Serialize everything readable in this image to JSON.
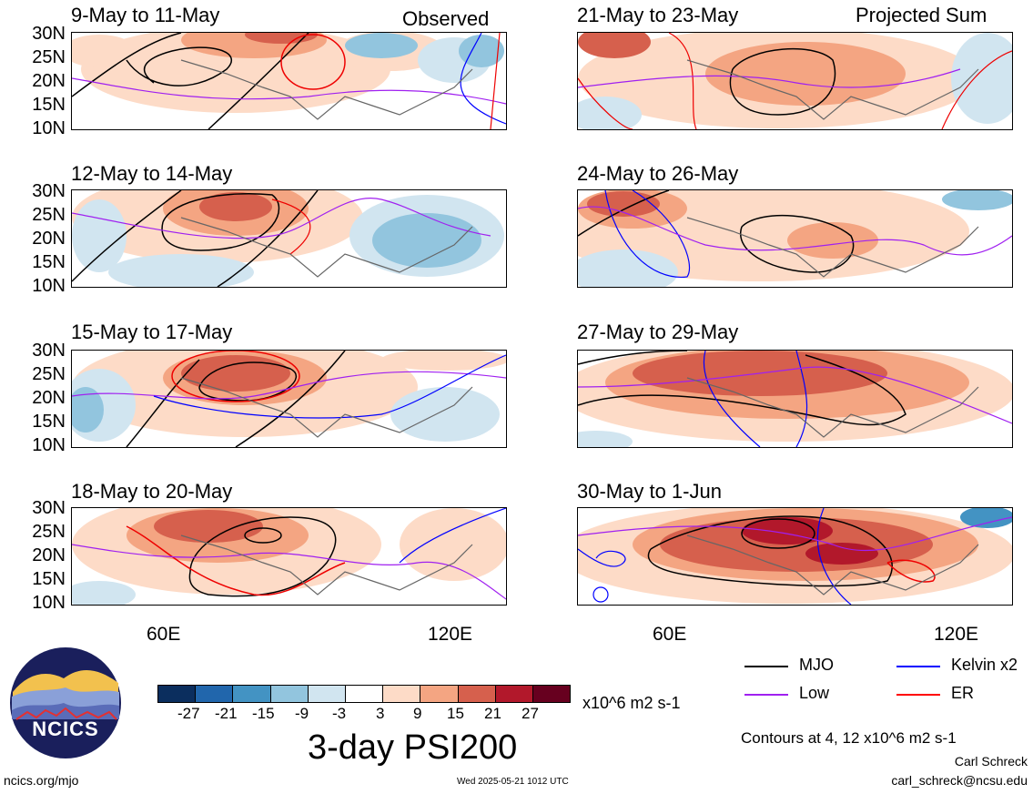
{
  "panels": [
    {
      "label": "9-May to 11-May",
      "tag": "Observed"
    },
    {
      "label": "21-May to 23-May",
      "tag": "Projected Sum"
    },
    {
      "label": "12-May to 14-May"
    },
    {
      "label": "24-May to 26-May"
    },
    {
      "label": "15-May to 17-May"
    },
    {
      "label": "27-May to 29-May"
    },
    {
      "label": "18-May to 20-May"
    },
    {
      "label": "30-May to 1-Jun"
    }
  ],
  "lat_labels": [
    "30N",
    "25N",
    "20N",
    "15N",
    "10N"
  ],
  "lon_labels": [
    "60E",
    "120E"
  ],
  "colorbar": {
    "colors": [
      "#0b2e5e",
      "#2166ac",
      "#4393c3",
      "#92c5de",
      "#d1e5f0",
      "#ffffff",
      "#fddbc7",
      "#f4a582",
      "#d6604d",
      "#b2182b",
      "#67001f"
    ],
    "labels": [
      "-27",
      "-21",
      "-15",
      "-9",
      "-3",
      "3",
      "9",
      "15",
      "21",
      "27"
    ],
    "units": "x10^6 m2 s-1"
  },
  "title": "3-day PSI200",
  "legend": [
    {
      "label": "MJO",
      "color": "#000000"
    },
    {
      "label": "Kelvin x2",
      "color": "#0000ff"
    },
    {
      "label": "Low",
      "color": "#a020f0"
    },
    {
      "label": "ER",
      "color": "#ff0000"
    }
  ],
  "contours_note": "Contours at 4, 12 x10^6 m2 s-1",
  "author": "Carl Schreck",
  "email": "carl_schreck@ncsu.edu",
  "site": "ncics.org/mjo",
  "timestamp": "Wed 2025-05-21 1012 UTC",
  "logo_text": "NCICS"
}
